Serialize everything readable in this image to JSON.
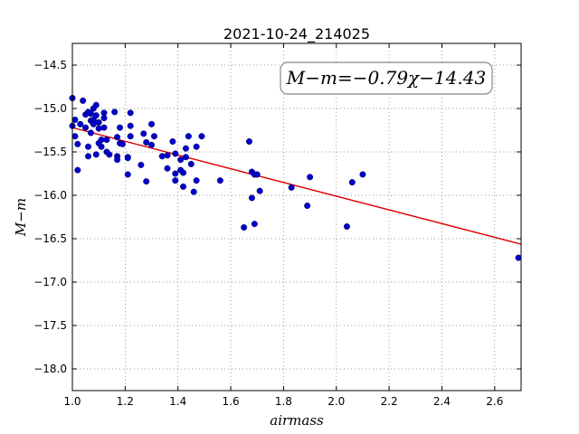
{
  "chart_data": {
    "type": "scatter",
    "title": "2021-10-24_214025",
    "xlabel": "airmass",
    "ylabel": "M−m",
    "xlim": [
      1.0,
      2.7
    ],
    "ylim": [
      -18.25,
      -14.25
    ],
    "xticks": [
      1.0,
      1.2,
      1.4,
      1.6,
      1.8,
      2.0,
      2.2,
      2.4,
      2.6
    ],
    "xtick_labels": [
      "1.0",
      "1.2",
      "1.4",
      "1.6",
      "1.8",
      "2.0",
      "2.2",
      "2.4",
      "2.6"
    ],
    "yticks": [
      -14.5,
      -15.0,
      -15.5,
      -16.0,
      -16.5,
      -17.0,
      -17.5,
      -18.0
    ],
    "ytick_labels": [
      "−14.5",
      "−15.0",
      "−15.5",
      "−16.0",
      "−16.5",
      "−17.0",
      "−17.5",
      "−18.0"
    ],
    "grid": true,
    "annotation": "M−m=−0.79χ−14.43",
    "fit": {
      "slope": -0.79,
      "intercept": -14.43,
      "color": "#dd0000"
    },
    "marker_color": "#0000cc",
    "series": [
      {
        "points": [
          [
            1.0,
            -14.88
          ],
          [
            1.0,
            -15.2
          ],
          [
            1.01,
            -15.13
          ],
          [
            1.01,
            -15.32
          ],
          [
            1.02,
            -15.41
          ],
          [
            1.02,
            -15.71
          ],
          [
            1.03,
            -15.18
          ],
          [
            1.04,
            -14.91
          ],
          [
            1.05,
            -15.07
          ],
          [
            1.05,
            -15.22
          ],
          [
            1.06,
            -15.04
          ],
          [
            1.06,
            -15.55
          ],
          [
            1.06,
            -15.44
          ],
          [
            1.07,
            -15.14
          ],
          [
            1.07,
            -15.06
          ],
          [
            1.07,
            -15.28
          ],
          [
            1.08,
            -15.0
          ],
          [
            1.08,
            -15.13
          ],
          [
            1.08,
            -15.18
          ],
          [
            1.09,
            -15.08
          ],
          [
            1.09,
            -14.96
          ],
          [
            1.09,
            -15.53
          ],
          [
            1.1,
            -15.16
          ],
          [
            1.1,
            -15.23
          ],
          [
            1.1,
            -15.4
          ],
          [
            1.11,
            -15.44
          ],
          [
            1.11,
            -15.36
          ],
          [
            1.12,
            -15.05
          ],
          [
            1.12,
            -15.11
          ],
          [
            1.12,
            -15.22
          ],
          [
            1.13,
            -15.5
          ],
          [
            1.13,
            -15.36
          ],
          [
            1.14,
            -15.53
          ],
          [
            1.16,
            -15.04
          ],
          [
            1.17,
            -15.33
          ],
          [
            1.17,
            -15.55
          ],
          [
            1.17,
            -15.59
          ],
          [
            1.18,
            -15.4
          ],
          [
            1.18,
            -15.22
          ],
          [
            1.19,
            -15.41
          ],
          [
            1.21,
            -15.56
          ],
          [
            1.21,
            -15.76
          ],
          [
            1.21,
            -15.57
          ],
          [
            1.22,
            -15.32
          ],
          [
            1.22,
            -15.05
          ],
          [
            1.22,
            -15.2
          ],
          [
            1.26,
            -15.65
          ],
          [
            1.27,
            -15.29
          ],
          [
            1.28,
            -15.84
          ],
          [
            1.28,
            -15.39
          ],
          [
            1.3,
            -15.42
          ],
          [
            1.3,
            -15.18
          ],
          [
            1.31,
            -15.32
          ],
          [
            1.34,
            -15.55
          ],
          [
            1.36,
            -15.69
          ],
          [
            1.36,
            -15.54
          ],
          [
            1.38,
            -15.38
          ],
          [
            1.39,
            -15.52
          ],
          [
            1.39,
            -15.75
          ],
          [
            1.39,
            -15.83
          ],
          [
            1.41,
            -15.59
          ],
          [
            1.41,
            -15.71
          ],
          [
            1.42,
            -15.74
          ],
          [
            1.42,
            -15.9
          ],
          [
            1.43,
            -15.46
          ],
          [
            1.43,
            -15.56
          ],
          [
            1.44,
            -15.32
          ],
          [
            1.45,
            -15.64
          ],
          [
            1.46,
            -15.96
          ],
          [
            1.47,
            -15.83
          ],
          [
            1.47,
            -15.44
          ],
          [
            1.49,
            -15.32
          ],
          [
            1.56,
            -15.83
          ],
          [
            1.65,
            -16.37
          ],
          [
            1.67,
            -15.38
          ],
          [
            1.68,
            -15.73
          ],
          [
            1.68,
            -16.03
          ],
          [
            1.69,
            -15.76
          ],
          [
            1.69,
            -16.33
          ],
          [
            1.7,
            -15.76
          ],
          [
            1.71,
            -15.95
          ],
          [
            1.83,
            -15.91
          ],
          [
            1.89,
            -16.12
          ],
          [
            1.9,
            -15.79
          ],
          [
            2.04,
            -16.36
          ],
          [
            2.06,
            -15.85
          ],
          [
            2.1,
            -15.76
          ],
          [
            2.69,
            -16.72
          ]
        ]
      }
    ]
  }
}
